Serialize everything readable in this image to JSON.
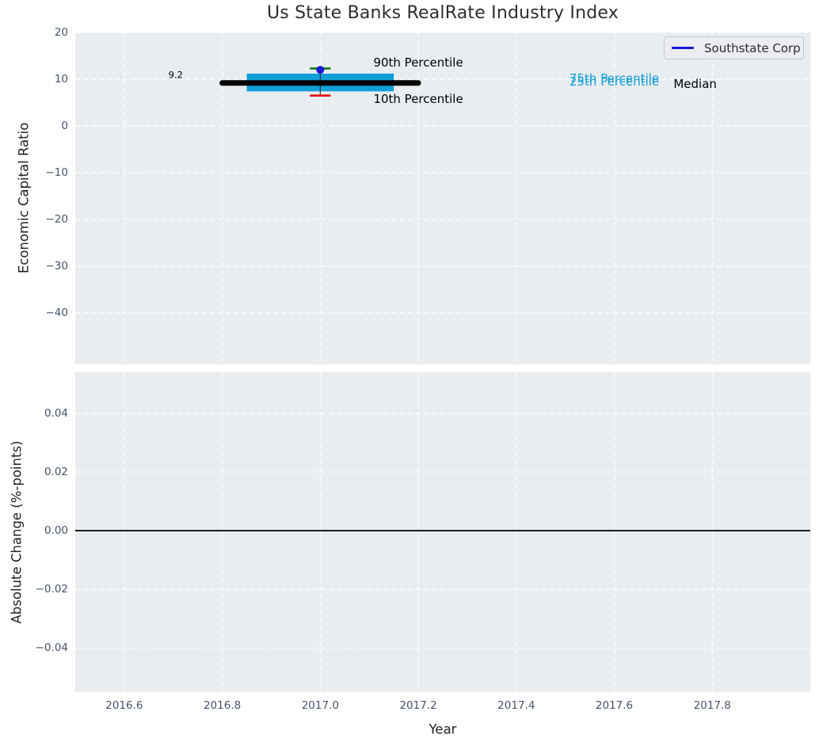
{
  "figure": {
    "title": "Us State Banks RealRate Industry Index",
    "legend": {
      "label": "Southstate Corp"
    }
  },
  "style": {
    "plot_bg": "#e9edf0",
    "grid_color": "#ffffff",
    "tick_color": "#46536a",
    "title_color": "#2d2d2d",
    "label_color": "#1f1f1f",
    "accent_blue": "#1a1ad6",
    "box_cyan": "#119fd8",
    "whisker_high_green": "#008000",
    "whisker_low_red": "#e8000b",
    "median_black": "#000000",
    "whisker_line": "#333333"
  },
  "chart_data": [
    {
      "type": "box",
      "ylabel": "Economic Capital Ratio",
      "xlim": [
        2016.5,
        2018.0
      ],
      "ylim": [
        -51,
        20
      ],
      "yticks": [
        20,
        10,
        0,
        -10,
        -20,
        -30,
        -40
      ],
      "xticks": [
        2016.6,
        2016.8,
        2017.0,
        2017.2,
        2017.4,
        2017.6,
        2017.8
      ],
      "grid": "white-dashed",
      "legend_position": "upper right",
      "box": {
        "x": 2017.0,
        "median": 9.2,
        "median_span": [
          2016.8,
          2017.2
        ],
        "q1": 7.4,
        "q3": 11.2,
        "box_span": [
          2016.85,
          2017.15
        ],
        "p90": 12.3,
        "p10": 6.5,
        "cap_half_width": 0.021
      },
      "series": [
        {
          "name": "Southstate Corp",
          "x": [
            2017.0
          ],
          "y": [
            12.0
          ],
          "marker": "circle"
        }
      ],
      "annotations": [
        {
          "text": "9.2",
          "x": 2016.705,
          "y": 10.9,
          "color": "#000000",
          "size": 11.5
        },
        {
          "text": "90th Percentile",
          "x": 2017.2,
          "y": 13.6,
          "color": "#000000",
          "size": 15
        },
        {
          "text": "10th Percentile",
          "x": 2017.2,
          "y": 5.8,
          "color": "#000000",
          "size": 15
        },
        {
          "text": "75th Percentile",
          "x": 2017.6,
          "y": 10.1,
          "color": "#119fd8",
          "size": 15
        },
        {
          "text": "25th Percentile",
          "x": 2017.6,
          "y": 9.55,
          "color": "#119fd8",
          "size": 15
        },
        {
          "text": "Median",
          "x": 2017.765,
          "y": 9.0,
          "color": "#000000",
          "size": 15
        }
      ]
    },
    {
      "type": "line",
      "ylabel": "Absolute Change (%-points)",
      "xlabel": "Year",
      "xlim": [
        2016.5,
        2018.0
      ],
      "ylim": [
        -0.055,
        0.054
      ],
      "yticks": [
        0.04,
        0.02,
        0.0,
        -0.02,
        -0.04
      ],
      "xticks": [
        2016.6,
        2016.8,
        2017.0,
        2017.2,
        2017.4,
        2017.6,
        2017.8
      ],
      "zero_line": {
        "y": 0.0,
        "color": "#000000",
        "width": 1.8
      },
      "series": []
    }
  ]
}
